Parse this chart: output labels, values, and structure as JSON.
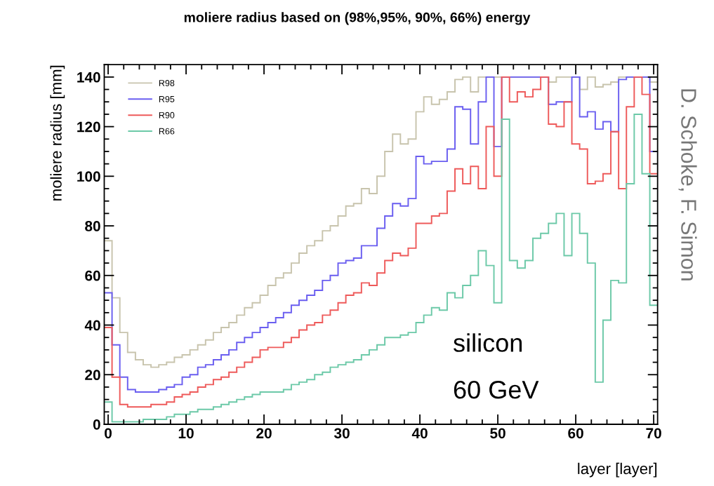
{
  "chart_data": {
    "type": "histogram",
    "title": "moliere radius based on (98%,95%, 90%, 66%) energy",
    "xlabel": "layer [layer]",
    "ylabel": "moliere radius [mm]",
    "bins": [
      -0.5,
      0.5,
      1.5,
      2.5,
      3.5,
      4.5,
      5.5,
      6.5,
      7.5,
      8.5,
      9.5,
      10.5,
      11.5,
      12.5,
      13.5,
      14.5,
      15.5,
      16.5,
      17.5,
      18.5,
      19.5,
      20.5,
      21.5,
      22.5,
      23.5,
      24.5,
      25.5,
      26.5,
      27.5,
      28.5,
      29.5,
      30.5,
      31.5,
      32.5,
      33.5,
      34.5,
      35.5,
      36.5,
      37.5,
      38.5,
      39.5,
      40.5,
      41.5,
      42.5,
      43.5,
      44.5,
      45.5,
      46.5,
      47.5,
      48.5,
      49.5,
      50.5,
      51.5,
      52.5,
      53.5,
      54.5,
      55.5,
      56.5,
      57.5,
      58.5,
      59.5,
      60.5,
      61.5,
      62.5,
      63.5,
      64.5,
      65.5,
      66.5,
      67.5,
      68.5,
      69.5,
      70.5
    ],
    "series": [
      {
        "name": "R98",
        "color": "#c8c4ad",
        "values": [
          74,
          51,
          37,
          29,
          26,
          24,
          23,
          24,
          25,
          27,
          28,
          30,
          32,
          34,
          37,
          39,
          41,
          44,
          47,
          49,
          52,
          56,
          59,
          61,
          65,
          69,
          72,
          74,
          78,
          80,
          84,
          88,
          89,
          95,
          93,
          100,
          110,
          117,
          113,
          115,
          126,
          132,
          129,
          131,
          134,
          139,
          140,
          134,
          140,
          140,
          140,
          140,
          140,
          140,
          140,
          140,
          140,
          138,
          140,
          140,
          140,
          135,
          140,
          136,
          137,
          138,
          140,
          140,
          140,
          140,
          138
        ]
      },
      {
        "name": "R95",
        "color": "#6a5ef0",
        "values": [
          53,
          32,
          19,
          14,
          13,
          13,
          13,
          14,
          15,
          16,
          19,
          20,
          23,
          24,
          26,
          28,
          30,
          33,
          35,
          37,
          39,
          41,
          43,
          45,
          48,
          50,
          52,
          54,
          58,
          60,
          65,
          66,
          67,
          72,
          72,
          79,
          84,
          89,
          88,
          91,
          108,
          105,
          106,
          106,
          111,
          128,
          127,
          113,
          130,
          140,
          112,
          140,
          140,
          140,
          140,
          140,
          140,
          129,
          130,
          130,
          140,
          124,
          126,
          119,
          122,
          118,
          139,
          140,
          140,
          140,
          110
        ]
      },
      {
        "name": "R90",
        "color": "#ee5a5a",
        "values": [
          39,
          19,
          8,
          7,
          7,
          7,
          8,
          8,
          9,
          11,
          12,
          13,
          15,
          16,
          18,
          19,
          21,
          23,
          25,
          27,
          30,
          31,
          31,
          33,
          35,
          38,
          40,
          41,
          44,
          46,
          49,
          52,
          53,
          57,
          56,
          61,
          66,
          69,
          68,
          71,
          81,
          81,
          84,
          85,
          94,
          103,
          97,
          104,
          95,
          120,
          100,
          140,
          130,
          134,
          132,
          135,
          140,
          121,
          120,
          130,
          113,
          111,
          97,
          98,
          101,
          118,
          95,
          128,
          140,
          133,
          101
        ]
      },
      {
        "name": "R66",
        "color": "#6cc9a8",
        "values": [
          9,
          1,
          1,
          1,
          1,
          2,
          2,
          2,
          3,
          4,
          4,
          5,
          6,
          6,
          7,
          8,
          9,
          10,
          11,
          12,
          13,
          13,
          13,
          14,
          16,
          17,
          18,
          20,
          21,
          23,
          24,
          25,
          26,
          28,
          30,
          32,
          35,
          35,
          36,
          37,
          41,
          44,
          47,
          46,
          53,
          51,
          56,
          60,
          70,
          64,
          49,
          123,
          66,
          63,
          66,
          75,
          77,
          81,
          85,
          68,
          85,
          77,
          65,
          17,
          42,
          58,
          57,
          97,
          125,
          101,
          48
        ]
      }
    ],
    "xlim": [
      -0.5,
      70.5
    ],
    "xticks": [
      0,
      10,
      20,
      30,
      40,
      50,
      60,
      70
    ],
    "ylim": [
      0,
      145
    ],
    "yticks": [
      0,
      20,
      40,
      60,
      80,
      100,
      120,
      140
    ],
    "legend": "top left",
    "grid": false,
    "annotations": [
      "silicon",
      "60 GeV",
      "D. Schoke, F. Simon"
    ]
  }
}
